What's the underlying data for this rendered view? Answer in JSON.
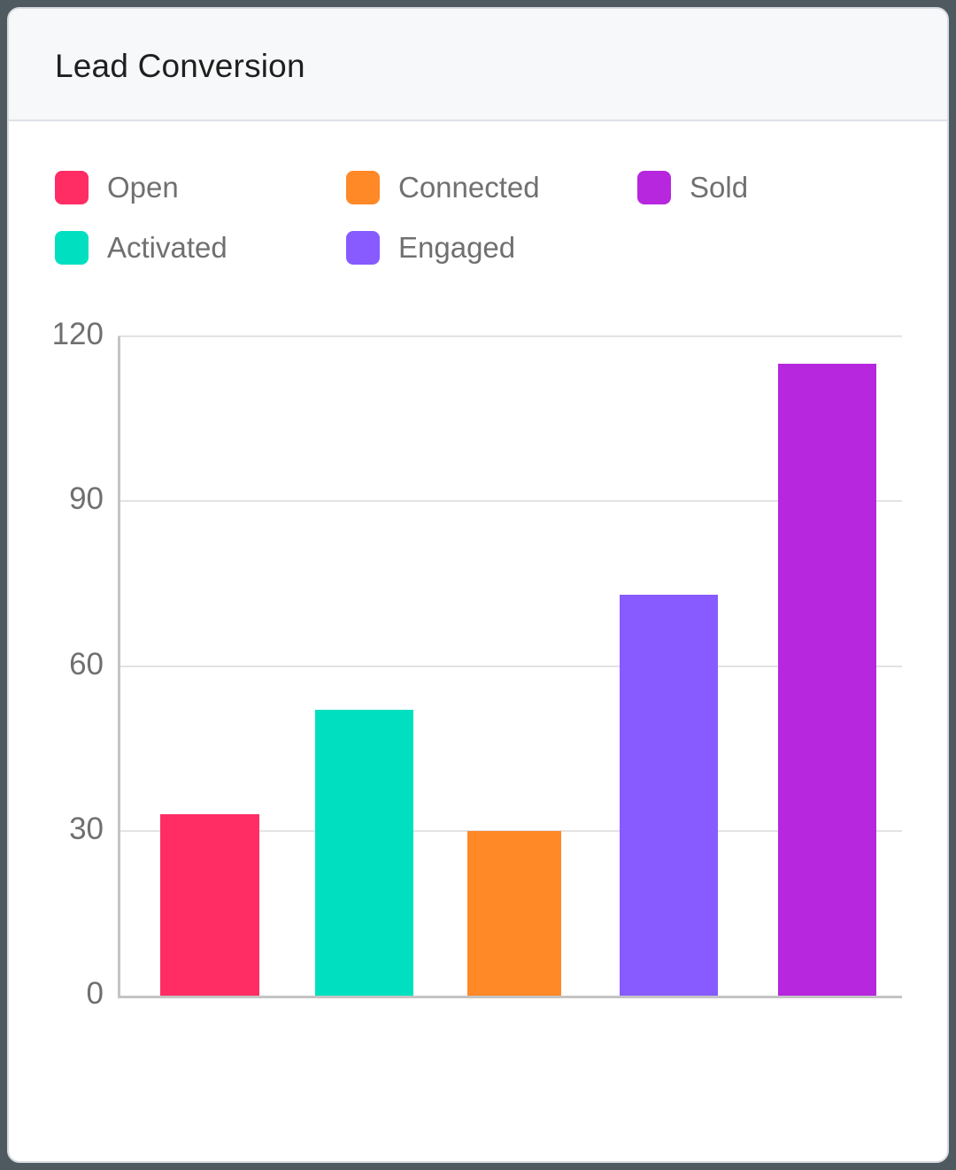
{
  "card": {
    "title": "Lead Conversion"
  },
  "legend": [
    {
      "label": "Open",
      "color": "#ff2d64"
    },
    {
      "label": "Connected",
      "color": "#ff8827"
    },
    {
      "label": "Sold",
      "color": "#b627de"
    },
    {
      "label": "Activated",
      "color": "#00e0c0"
    },
    {
      "label": "Engaged",
      "color": "#875bff"
    }
  ],
  "chart_data": {
    "type": "bar",
    "title": "Lead Conversion",
    "xlabel": "",
    "ylabel": "",
    "categories": [
      "Open",
      "Activated",
      "Connected",
      "Engaged",
      "Sold"
    ],
    "values": [
      33,
      52,
      30,
      73,
      115
    ],
    "colors": [
      "#ff2d64",
      "#00e0c0",
      "#ff8827",
      "#875bff",
      "#b627de"
    ],
    "ylim": [
      0,
      120
    ],
    "yticks": [
      0,
      30,
      60,
      90,
      120
    ],
    "ytick_labels": [
      "0",
      "30",
      "60",
      "90",
      "120"
    ],
    "grid": true,
    "legend_position": "top",
    "x_tick_labels_visible": false
  }
}
